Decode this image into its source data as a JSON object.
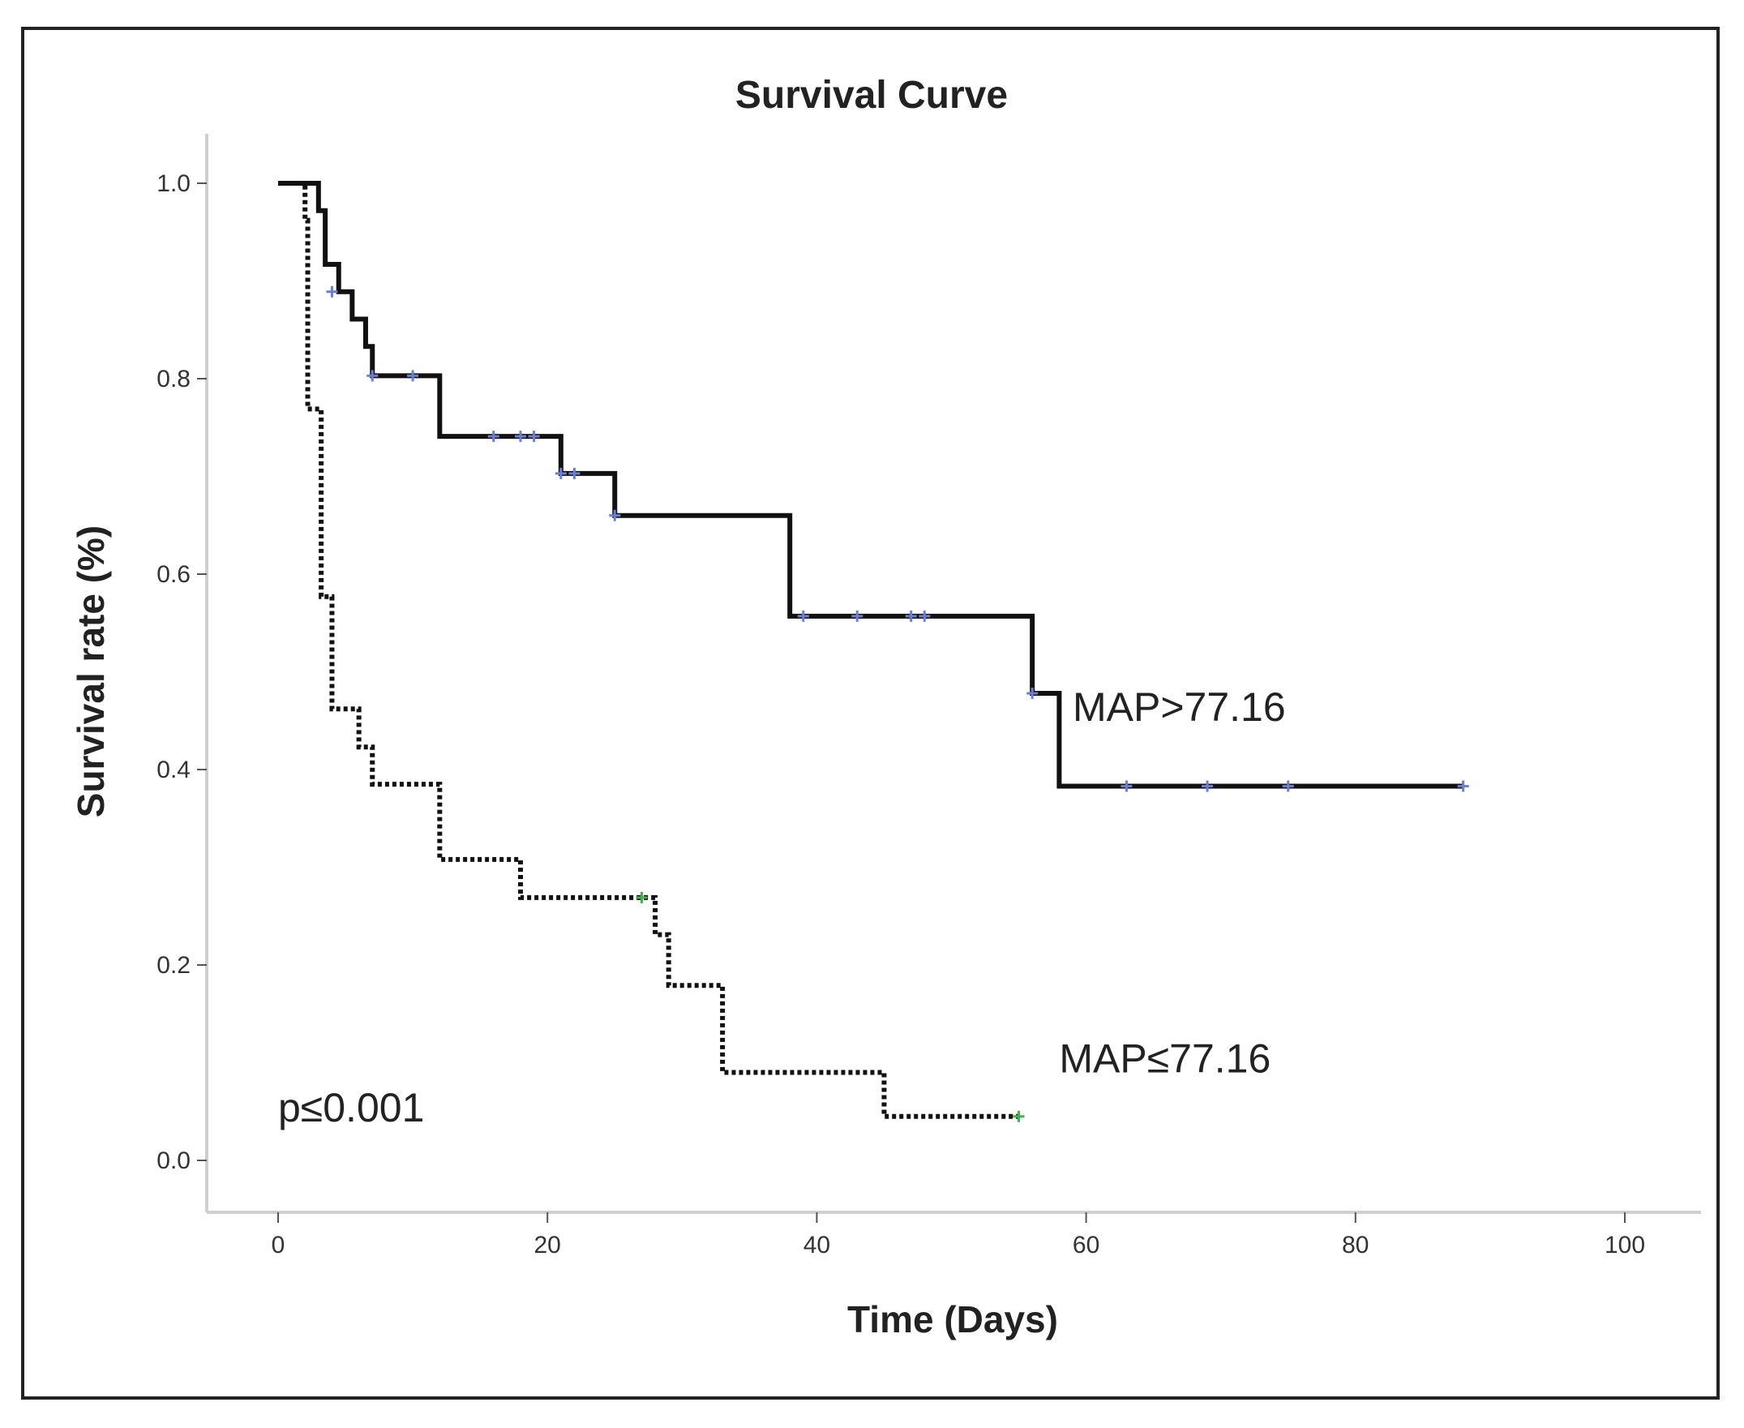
{
  "chart_data": {
    "type": "line",
    "title": "Survival Curve",
    "xlabel": "Time (Days)",
    "ylabel": "Survival rate (%)",
    "xlim": [
      0,
      100
    ],
    "ylim": [
      0,
      1.0
    ],
    "x_ticks": [
      "0",
      "20",
      "40",
      "60",
      "80",
      "100"
    ],
    "y_ticks": [
      "0.0",
      "0.2",
      "0.4",
      "0.6",
      "0.8",
      "1.0"
    ],
    "grid": false,
    "step": true,
    "series": [
      {
        "name": "MAP>77.16",
        "line_style": "solid",
        "line_color": "#111111",
        "censor_color": "#6b7fd4",
        "steps": [
          [
            0,
            1.0
          ],
          [
            3,
            0.972
          ],
          [
            3.5,
            0.917
          ],
          [
            4.5,
            0.889
          ],
          [
            5.5,
            0.861
          ],
          [
            6.5,
            0.833
          ],
          [
            7,
            0.803
          ],
          [
            12,
            0.741
          ],
          [
            21,
            0.703
          ],
          [
            25,
            0.66
          ],
          [
            38,
            0.557
          ],
          [
            56,
            0.478
          ],
          [
            58,
            0.383
          ],
          [
            88,
            0.383
          ]
        ],
        "censored": [
          [
            4,
            0.889
          ],
          [
            7,
            0.803
          ],
          [
            10,
            0.803
          ],
          [
            16,
            0.741
          ],
          [
            18,
            0.741
          ],
          [
            19,
            0.741
          ],
          [
            21,
            0.703
          ],
          [
            22,
            0.703
          ],
          [
            25,
            0.66
          ],
          [
            39,
            0.557
          ],
          [
            43,
            0.557
          ],
          [
            47,
            0.557
          ],
          [
            48,
            0.557
          ],
          [
            56,
            0.478
          ],
          [
            63,
            0.383
          ],
          [
            69,
            0.383
          ],
          [
            75,
            0.383
          ],
          [
            88,
            0.383
          ]
        ]
      },
      {
        "name": "MAP≤77.16",
        "line_style": "dotted",
        "line_color": "#111111",
        "censor_color": "#3cb44b",
        "steps": [
          [
            0,
            1.0
          ],
          [
            2,
            0.962
          ],
          [
            2.2,
            0.769
          ],
          [
            3,
            0.769
          ],
          [
            3.2,
            0.577
          ],
          [
            4,
            0.462
          ],
          [
            6,
            0.423
          ],
          [
            7,
            0.385
          ],
          [
            12,
            0.308
          ],
          [
            18,
            0.269
          ],
          [
            28,
            0.231
          ],
          [
            29,
            0.179
          ],
          [
            33,
            0.09
          ],
          [
            45,
            0.045
          ],
          [
            55,
            0.045
          ]
        ],
        "censored": [
          [
            27,
            0.269
          ],
          [
            55,
            0.045
          ]
        ]
      }
    ],
    "annotations": [
      {
        "text": "MAP>77.16",
        "x": 59,
        "y": 0.45
      },
      {
        "text": "MAP≤77.16",
        "x": 58,
        "y": 0.09
      },
      {
        "text": "p≤0.001",
        "x": 0,
        "y": 0.04
      }
    ]
  }
}
